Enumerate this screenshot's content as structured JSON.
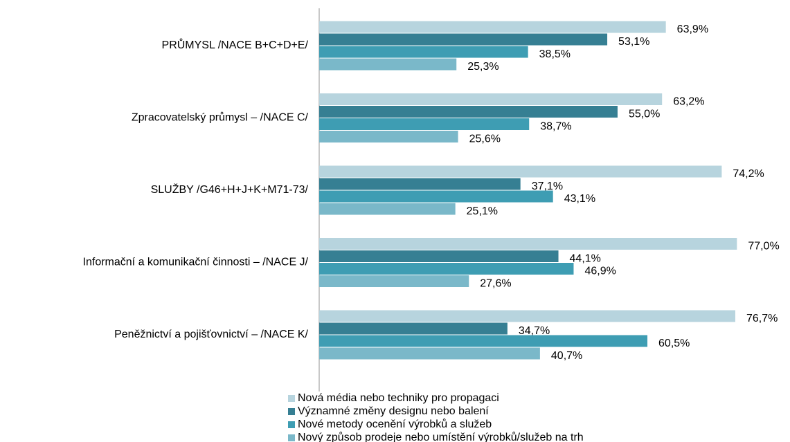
{
  "chart_data": {
    "type": "hbar",
    "categories": [
      "PRŮMYSL  /NACE B+C+D+E/",
      "Zpracovatelský průmysl – /NACE C/",
      "SLUŽBY /G46+H+J+K+M71-73/",
      "Informační a komunikační činnosti – /NACE J/",
      "Peněžnictví a pojišťovnictví – /NACE K/"
    ],
    "series": [
      {
        "name": "Nová média nebo techniky pro propagaci",
        "color": "#b7d4de",
        "values": [
          63.9,
          63.2,
          74.2,
          77.0,
          76.7
        ],
        "value_labels": [
          "63,9%",
          "63,2%",
          "74,2%",
          "77,0%",
          "76,7%"
        ]
      },
      {
        "name": "Významné změny designu nebo balení",
        "color": "#367f93",
        "values": [
          53.1,
          55.0,
          37.1,
          44.1,
          34.7
        ],
        "value_labels": [
          "53,1%",
          "55,0%",
          "37,1%",
          "44,1%",
          "34,7%"
        ]
      },
      {
        "name": "Nové metody ocenění výrobků a služeb",
        "color": "#3e9db3",
        "values": [
          38.5,
          38.7,
          43.1,
          46.9,
          60.5
        ],
        "value_labels": [
          "38,5%",
          "38,7%",
          "43,1%",
          "46,9%",
          "60,5%"
        ]
      },
      {
        "name": "Nový způsob prodeje nebo umístění výrobků/služeb na trh",
        "color": "#7ab8c9",
        "values": [
          25.3,
          25.6,
          25.1,
          27.6,
          40.7
        ],
        "value_labels": [
          "25,3%",
          "25,6%",
          "25,1%",
          "27,6%",
          "40,7%"
        ]
      }
    ],
    "xlim": [
      0,
      85
    ],
    "legend": "bottom"
  }
}
